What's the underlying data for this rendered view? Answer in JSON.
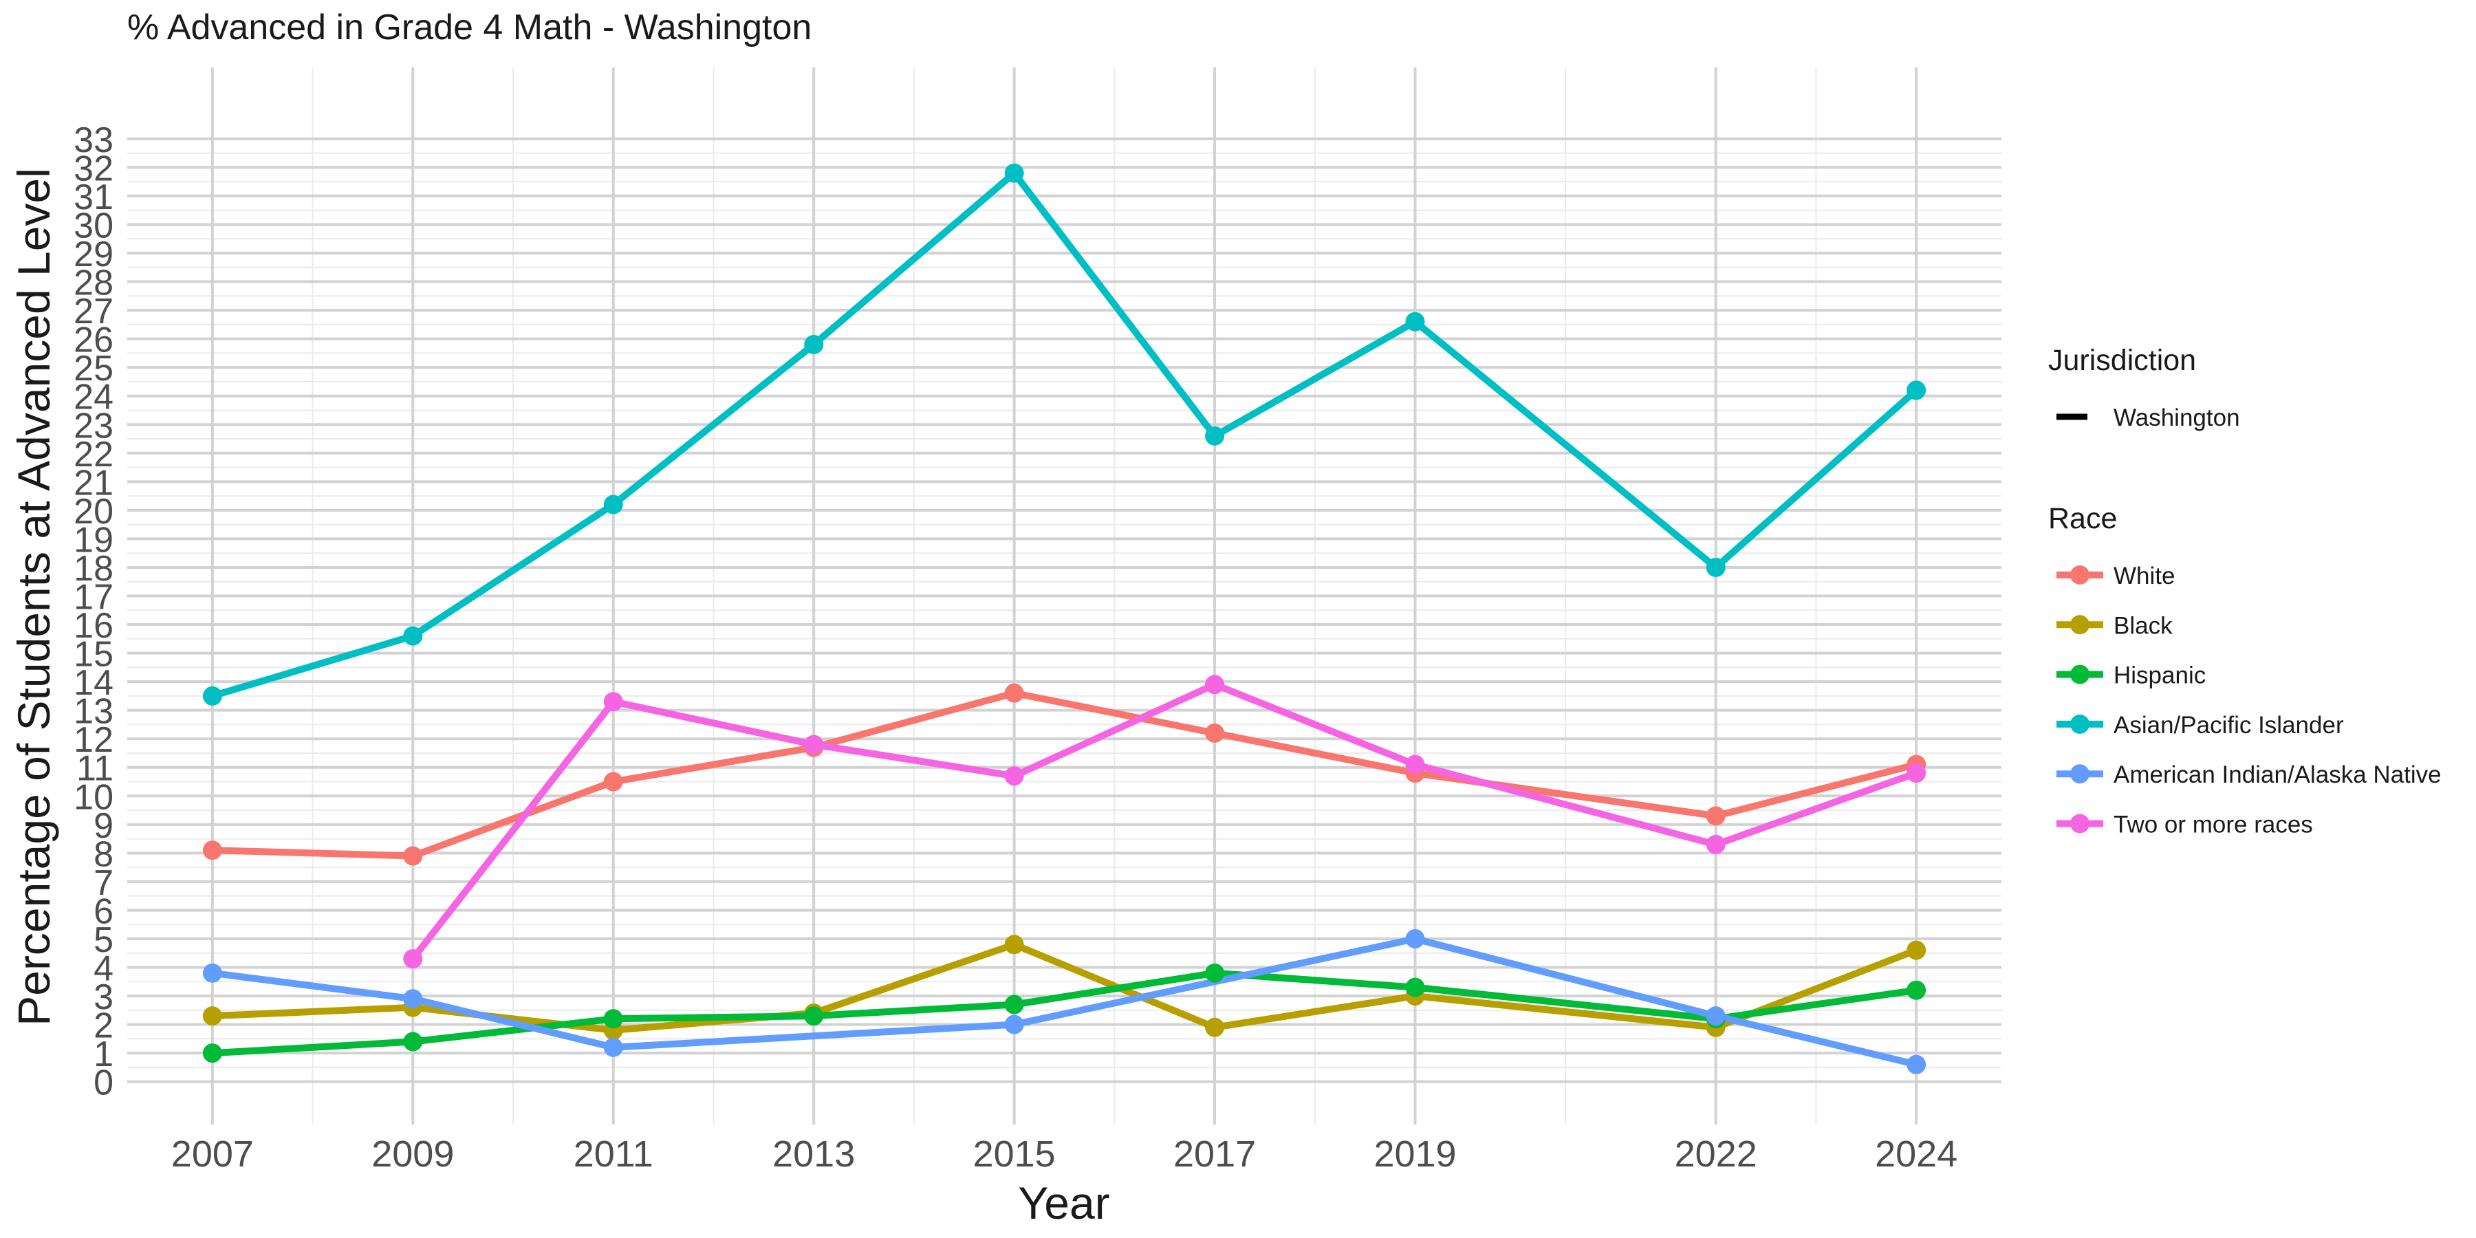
{
  "chart_data": {
    "type": "line",
    "title": "% Advanced in Grade 4 Math - Washington",
    "xlabel": "Year",
    "ylabel": "Percentage of Students at Advanced Level",
    "x": [
      2007,
      2009,
      2011,
      2013,
      2015,
      2017,
      2019,
      2022,
      2024
    ],
    "x_tick_labels": [
      "2007",
      "2009",
      "2011",
      "2013",
      "2015",
      "2017",
      "2019",
      "2022",
      "2024"
    ],
    "xlim": [
      2006.15,
      2024.85
    ],
    "ylim": [
      -1.5,
      35.5
    ],
    "y_ticks": [
      0,
      1,
      2,
      3,
      4,
      5,
      6,
      7,
      8,
      9,
      10,
      11,
      12,
      13,
      14,
      15,
      16,
      17,
      18,
      19,
      20,
      21,
      22,
      23,
      24,
      25,
      26,
      27,
      28,
      29,
      30,
      31,
      32,
      33
    ],
    "grid": true,
    "series": [
      {
        "name": "White",
        "color": "#F8766D",
        "values": [
          8.1,
          7.9,
          10.5,
          11.7,
          13.6,
          12.2,
          10.8,
          9.3,
          11.1
        ]
      },
      {
        "name": "Black",
        "color": "#B79F00",
        "values": [
          2.3,
          2.6,
          1.8,
          2.4,
          4.8,
          1.9,
          3.0,
          1.9,
          4.6
        ]
      },
      {
        "name": "Hispanic",
        "color": "#00BA38",
        "values": [
          1.0,
          1.4,
          2.2,
          2.3,
          2.7,
          3.8,
          3.3,
          2.2,
          3.2
        ]
      },
      {
        "name": "Asian/Pacific Islander",
        "color": "#00BFC4",
        "values": [
          13.5,
          15.6,
          20.2,
          25.8,
          31.8,
          22.6,
          26.6,
          18.0,
          24.2
        ]
      },
      {
        "name": "American Indian/Alaska Native",
        "color": "#619CFF",
        "values": [
          3.8,
          2.9,
          1.2,
          null,
          2.0,
          null,
          5.0,
          2.3,
          0.6
        ]
      },
      {
        "name": "Two or more races",
        "color": "#F564E3",
        "values": [
          null,
          4.3,
          13.3,
          11.8,
          10.7,
          13.9,
          11.1,
          8.3,
          10.8
        ]
      }
    ],
    "legend": {
      "position": "right",
      "jurisdiction_title": "Jurisdiction",
      "jurisdiction_entries": [
        "Washington"
      ],
      "race_title": "Race"
    }
  }
}
